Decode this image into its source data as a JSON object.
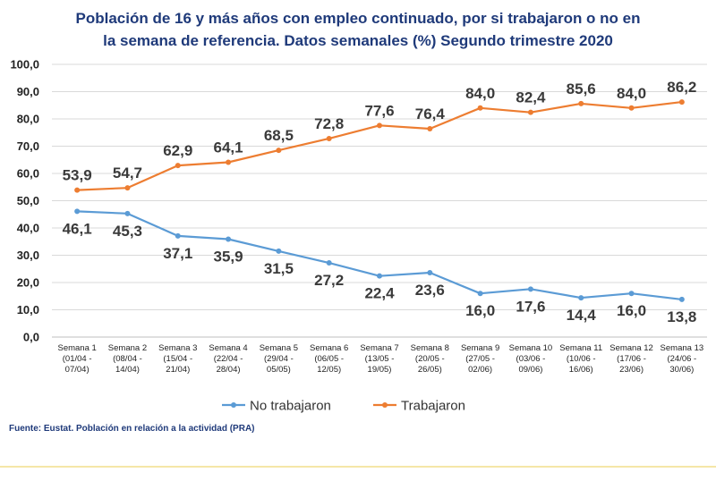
{
  "chart_data": {
    "type": "line",
    "title_lines": [
      "Población de 16 y más años con empleo continuado, por si trabajaron o no en",
      "la semana de referencia. Datos semanales (%) Segundo  trimestre 2020"
    ],
    "categories": [
      [
        "Semana 1",
        "(01/04 -",
        "07/04)"
      ],
      [
        "Semana 2",
        "(08/04 -",
        "14/04)"
      ],
      [
        "Semana 3",
        "(15/04 -",
        "21/04)"
      ],
      [
        "Semana 4",
        "(22/04 -",
        "28/04)"
      ],
      [
        "Semana 5",
        "(29/04 -",
        "05/05)"
      ],
      [
        "Semana 6",
        "(06/05 -",
        "12/05)"
      ],
      [
        "Semana 7",
        "(13/05 -",
        "19/05)"
      ],
      [
        "Semana 8",
        "(20/05 -",
        "26/05)"
      ],
      [
        "Semana 9",
        "(27/05 -",
        "02/06)"
      ],
      [
        "Semana 10",
        "(03/06 -",
        "09/06)"
      ],
      [
        "Semana 11",
        "(10/06 -",
        "16/06)"
      ],
      [
        "Semana 12",
        "(17/06 -",
        "23/06)"
      ],
      [
        "Semana 13",
        "(24/06 -",
        "30/06)"
      ]
    ],
    "series": [
      {
        "name": "No trabajaron",
        "color": "#5b9bd5",
        "values": [
          46.1,
          45.3,
          37.1,
          35.9,
          31.5,
          27.2,
          22.4,
          23.6,
          16.0,
          17.6,
          14.4,
          16.0,
          13.8
        ],
        "labels": [
          "46,1",
          "45,3",
          "37,1",
          "35,9",
          "31,5",
          "27,2",
          "22,4",
          "23,6",
          "16,0",
          "17,6",
          "14,4",
          "16,0",
          "13,8"
        ]
      },
      {
        "name": "Trabajaron",
        "color": "#ed7d31",
        "values": [
          53.9,
          54.7,
          62.9,
          64.1,
          68.5,
          72.8,
          77.6,
          76.4,
          84.0,
          82.4,
          85.6,
          84.0,
          86.2
        ],
        "labels": [
          "53,9",
          "54,7",
          "62,9",
          "64,1",
          "68,5",
          "72,8",
          "77,6",
          "76,4",
          "84,0",
          "82,4",
          "85,6",
          "84,0",
          "86,2"
        ]
      }
    ],
    "ylim": [
      0,
      100
    ],
    "yticks": [
      "0,0",
      "10,0",
      "20,0",
      "30,0",
      "40,0",
      "50,0",
      "60,0",
      "70,0",
      "80,0",
      "90,0",
      "100,0"
    ],
    "grid": true,
    "legend_position": "bottom"
  },
  "source_note": "Fuente: Eustat. Población en relación a la actividad (PRA)"
}
